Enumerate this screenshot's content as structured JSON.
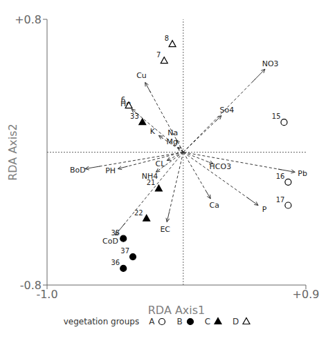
{
  "chart_data": {
    "type": "biplot",
    "xlim": [
      -1.0,
      0.9
    ],
    "ylim": [
      -0.8,
      0.8
    ],
    "xticks": [
      {
        "value": -1.0,
        "label": "-1.0"
      },
      {
        "value": 0.9,
        "label": "+0.9"
      }
    ],
    "yticks": [
      -0.8,
      {
        "value": 0.8,
        "label": "+0.8"
      }
    ],
    "grid": false,
    "x_label": "RDA Axis1",
    "y_label": "RDA Axis2",
    "legend_title": "vegetation groups",
    "arrows": [
      {
        "name": "Cu",
        "x": -0.28,
        "y": 0.42
      },
      {
        "name": "Hg",
        "x": -0.38,
        "y": 0.26
      },
      {
        "name": "NO3",
        "x": 0.6,
        "y": 0.5
      },
      {
        "name": "So4",
        "x": 0.28,
        "y": 0.22
      },
      {
        "name": "K",
        "x": -0.18,
        "y": 0.1
      },
      {
        "name": "Na",
        "x": -0.05,
        "y": 0.075
      },
      {
        "name": "Mg",
        "x": -0.04,
        "y": 0.03
      },
      {
        "name": "CL",
        "x": -0.12,
        "y": -0.05
      },
      {
        "name": "HCO3",
        "x": 0.22,
        "y": -0.07
      },
      {
        "name": "Ca",
        "x": 0.2,
        "y": -0.28
      },
      {
        "name": "P",
        "x": 0.55,
        "y": -0.32
      },
      {
        "name": "NH4",
        "x": -0.2,
        "y": -0.12
      },
      {
        "name": "EC",
        "x": -0.12,
        "y": -0.42
      },
      {
        "name": "CoD",
        "x": -0.5,
        "y": -0.5
      },
      {
        "name": "BoD",
        "x": -0.72,
        "y": -0.1
      },
      {
        "name": "PH",
        "x": -0.48,
        "y": -0.1
      },
      {
        "name": "Pb",
        "x": 0.82,
        "y": -0.12
      }
    ],
    "series": [
      {
        "name": "A",
        "marker": "circle",
        "color": "white",
        "points": [
          {
            "label": "15",
            "x": 0.74,
            "y": 0.18
          },
          {
            "label": "16",
            "x": 0.77,
            "y": -0.18
          },
          {
            "label": "17",
            "x": 0.77,
            "y": -0.32
          }
        ]
      },
      {
        "name": "B",
        "marker": "circle",
        "color": "black",
        "points": [
          {
            "label": "35",
            "x": -0.44,
            "y": -0.52
          },
          {
            "label": "37",
            "x": -0.37,
            "y": -0.63
          },
          {
            "label": "36",
            "x": -0.44,
            "y": -0.7
          }
        ]
      },
      {
        "name": "C",
        "marker": "triangle",
        "color": "black",
        "points": [
          {
            "label": "33",
            "x": -0.3,
            "y": 0.18
          },
          {
            "label": "21",
            "x": -0.18,
            "y": -0.22
          },
          {
            "label": "22",
            "x": -0.27,
            "y": -0.4
          }
        ]
      },
      {
        "name": "D",
        "marker": "triangle",
        "color": "white",
        "points": [
          {
            "label": "8",
            "x": -0.08,
            "y": 0.65
          },
          {
            "label": "7",
            "x": -0.14,
            "y": 0.55
          },
          {
            "label": "6",
            "x": -0.4,
            "y": 0.28
          }
        ]
      }
    ]
  }
}
